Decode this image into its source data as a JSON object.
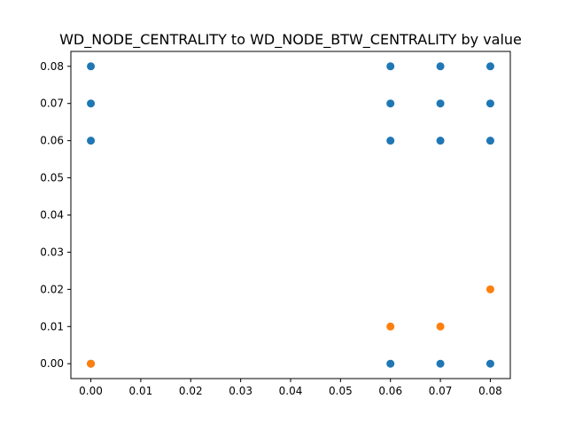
{
  "chart_data": {
    "type": "scatter",
    "title": "WD_NODE_CENTRALITY to WD_NODE_BTW_CENTRALITY by value",
    "xlabel": "",
    "ylabel": "",
    "xlim": [
      -0.004,
      0.084
    ],
    "ylim": [
      -0.004,
      0.084
    ],
    "x_ticks": [
      0.0,
      0.01,
      0.02,
      0.03,
      0.04,
      0.05,
      0.06,
      0.07,
      0.08
    ],
    "y_ticks": [
      0.0,
      0.01,
      0.02,
      0.03,
      0.04,
      0.05,
      0.06,
      0.07,
      0.08
    ],
    "tick_format_decimals": 2,
    "grid": false,
    "legend": "none",
    "series": [
      {
        "color": "#1f77b4",
        "points": [
          {
            "x": 0.0,
            "y": 0.08
          },
          {
            "x": 0.0,
            "y": 0.07
          },
          {
            "x": 0.0,
            "y": 0.06
          },
          {
            "x": 0.0,
            "y": 0.0
          },
          {
            "x": 0.06,
            "y": 0.08
          },
          {
            "x": 0.06,
            "y": 0.07
          },
          {
            "x": 0.06,
            "y": 0.06
          },
          {
            "x": 0.06,
            "y": 0.0
          },
          {
            "x": 0.07,
            "y": 0.08
          },
          {
            "x": 0.07,
            "y": 0.07
          },
          {
            "x": 0.07,
            "y": 0.06
          },
          {
            "x": 0.07,
            "y": 0.0
          },
          {
            "x": 0.08,
            "y": 0.08
          },
          {
            "x": 0.08,
            "y": 0.07
          },
          {
            "x": 0.08,
            "y": 0.06
          },
          {
            "x": 0.08,
            "y": 0.0
          }
        ]
      },
      {
        "color": "#ff7f0e",
        "points": [
          {
            "x": 0.0,
            "y": 0.0
          },
          {
            "x": 0.06,
            "y": 0.01
          },
          {
            "x": 0.07,
            "y": 0.01
          },
          {
            "x": 0.08,
            "y": 0.02
          }
        ]
      }
    ]
  }
}
